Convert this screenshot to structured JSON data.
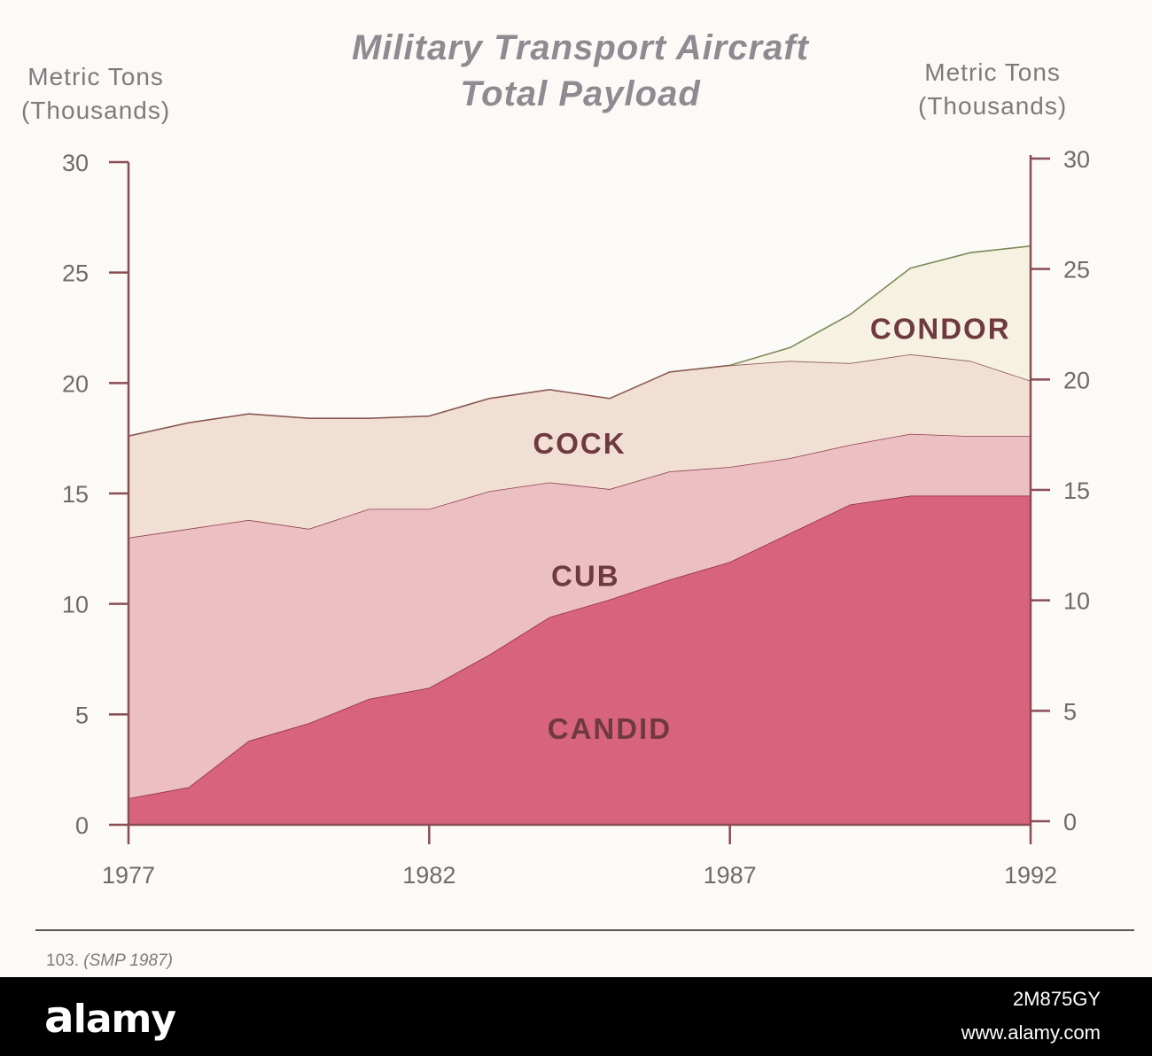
{
  "chart_data": {
    "type": "area",
    "stacked": true,
    "title": "Military Transport Aircraft Total Payload",
    "ylabel_left": "Metric Tons (Thousands)",
    "ylabel_right": "Metric Tons (Thousands)",
    "ylim": [
      0,
      30
    ],
    "xlim": [
      1977,
      1992
    ],
    "xticks": [
      1977,
      1982,
      1987,
      1992
    ],
    "yticks": [
      0,
      5,
      10,
      15,
      20,
      25,
      30
    ],
    "x": [
      1977,
      1978,
      1979,
      1980,
      1981,
      1982,
      1983,
      1984,
      1985,
      1986,
      1987,
      1988,
      1989,
      1990,
      1991,
      1992
    ],
    "grid": false,
    "legend": "none (series labeled inside areas)",
    "series": [
      {
        "name": "CANDID",
        "color": "#d8637d",
        "line": "#8c2f45",
        "values": [
          1.2,
          1.7,
          3.8,
          4.6,
          5.7,
          6.2,
          7.7,
          9.4,
          10.2,
          11.1,
          11.9,
          13.2,
          14.5,
          14.9,
          14.9,
          14.9
        ]
      },
      {
        "name": "CUB",
        "color": "#ecbfc2",
        "line": "#8c4150",
        "values": [
          11.8,
          11.7,
          10.0,
          8.8,
          8.6,
          8.1,
          7.4,
          6.1,
          5.0,
          4.9,
          4.3,
          3.4,
          2.7,
          2.8,
          2.7,
          2.7
        ]
      },
      {
        "name": "COCK",
        "color": "#f2dfd3",
        "line": "#8a5a55",
        "values": [
          4.6,
          4.8,
          4.8,
          5.0,
          4.1,
          4.2,
          4.2,
          4.2,
          4.1,
          4.5,
          4.6,
          4.4,
          3.7,
          3.6,
          3.4,
          2.5
        ]
      },
      {
        "name": "CONDOR",
        "color": "#f6f1e1",
        "line": "#7b8a5a",
        "values": [
          0,
          0,
          0,
          0,
          0,
          0,
          0,
          0,
          0,
          0,
          0,
          0.6,
          2.2,
          3.9,
          4.9,
          6.1
        ]
      }
    ]
  },
  "footer": {
    "number": "103.",
    "source": "(SMP 1987)"
  },
  "watermark": {
    "logo": "alamy",
    "image_id": "2M875GY",
    "url": "www.alamy.com"
  },
  "colors": {
    "title": "#8f8a91",
    "axis": "#7f7a7c",
    "series_label": "#6e3a40",
    "axis_line": "#8a4c55"
  }
}
